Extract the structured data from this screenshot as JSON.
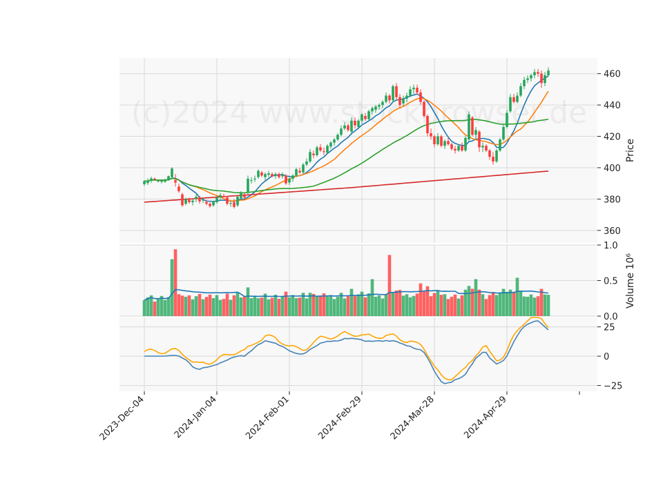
{
  "watermark": "(c)2024 www.stockbrowser.de",
  "colors": {
    "up": "#26a65b",
    "down": "#ff3b3b",
    "ma_short": "#1f77b4",
    "ma_mid": "#ff7f0e",
    "ma_long": "#2ca02c",
    "ma_200": "#d62728",
    "volume_ma": "#1f77b4",
    "osc_fast": "#4682b4",
    "osc_slow": "#ffa500",
    "panel_bg": "#f8f8f8",
    "grid": "#d9d9d9"
  },
  "chart_data": [
    {
      "type": "candlestick",
      "panel": "price",
      "ylabel": "Price",
      "ylim": [
        352,
        470
      ],
      "yticks": [
        360,
        380,
        400,
        420,
        440,
        460
      ],
      "x_tick_labels": [
        "2023-Dec-04",
        "2024-Jan-04",
        "2024-Feb-01",
        "2024-Feb-29",
        "2024-Mar-28",
        "2024-Apr-29"
      ],
      "x_tick_index": [
        0,
        21,
        42,
        63,
        84,
        105
      ],
      "grid": true,
      "candles": [
        [
          389.5,
          392.0,
          388.3,
          391.5
        ],
        [
          390.2,
          393.3,
          389.0,
          391.6
        ],
        [
          391.7,
          394.3,
          390.3,
          393.2
        ],
        [
          393.0,
          393.7,
          392.3,
          392.5
        ],
        [
          391.3,
          392.5,
          390.6,
          391.6
        ],
        [
          391.0,
          392.6,
          390.0,
          391.7
        ],
        [
          391.0,
          393.0,
          390.4,
          392.2
        ],
        [
          392.0,
          395.0,
          391.7,
          394.6
        ],
        [
          394.0,
          400.4,
          393.0,
          399.5
        ],
        [
          392.0,
          396.0,
          388.0,
          390.5
        ],
        [
          388.0,
          390.0,
          384.0,
          385.0
        ],
        [
          383.0,
          384.0,
          375.0,
          376.0
        ],
        [
          377.0,
          381.0,
          376.0,
          380.0
        ],
        [
          379.5,
          381.0,
          377.0,
          378.0
        ],
        [
          378.0,
          380.0,
          376.0,
          379.0
        ],
        [
          380.0,
          383.0,
          378.0,
          381.5
        ],
        [
          381.0,
          382.0,
          377.0,
          378.5
        ],
        [
          379.5,
          381.0,
          377.5,
          379.5
        ],
        [
          378.0,
          379.5,
          376.0,
          377.0
        ],
        [
          377.0,
          378.0,
          374.5,
          375.5
        ],
        [
          376.0,
          379.0,
          375.0,
          378.5
        ],
        [
          378.0,
          382.0,
          377.0,
          381.0
        ],
        [
          381.0,
          384.0,
          380.0,
          382.5
        ],
        [
          382.0,
          383.5,
          381.0,
          381.5
        ],
        [
          381.0,
          382.0,
          376.0,
          377.0
        ],
        [
          377.0,
          378.5,
          375.0,
          377.5
        ],
        [
          378.0,
          380.0,
          374.0,
          375.0
        ],
        [
          376.0,
          382.0,
          375.0,
          381.5
        ],
        [
          380.5,
          385.0,
          379.5,
          384.0
        ],
        [
          383.0,
          384.0,
          380.0,
          381.0
        ],
        [
          384.0,
          395.0,
          383.0,
          393.0
        ],
        [
          392.0,
          394.0,
          390.0,
          392.0
        ],
        [
          392.5,
          395.0,
          391.0,
          393.0
        ],
        [
          394.0,
          399.0,
          393.0,
          398.0
        ],
        [
          397.0,
          398.0,
          394.0,
          395.0
        ],
        [
          394.0,
          397.0,
          391.0,
          396.0
        ],
        [
          395.5,
          398.0,
          394.0,
          396.5
        ],
        [
          396.0,
          397.0,
          394.0,
          394.5
        ],
        [
          395.0,
          397.0,
          393.0,
          396.0
        ],
        [
          396.0,
          397.0,
          393.0,
          394.0
        ],
        [
          394.5,
          397.0,
          393.0,
          395.5
        ],
        [
          395.0,
          396.0,
          389.0,
          390.0
        ],
        [
          390.5,
          394.0,
          389.0,
          393.0
        ],
        [
          393.0,
          396.0,
          391.0,
          395.0
        ],
        [
          395.0,
          400.0,
          394.0,
          399.0
        ],
        [
          398.0,
          400.0,
          396.0,
          397.0
        ],
        [
          397.0,
          403.0,
          396.0,
          402.0
        ],
        [
          402.0,
          406.0,
          401.0,
          404.0
        ],
        [
          404.0,
          412.0,
          403.0,
          410.0
        ],
        [
          409.0,
          411.0,
          406.0,
          408.0
        ],
        [
          408.0,
          414.0,
          407.0,
          413.0
        ],
        [
          413.0,
          415.0,
          410.0,
          411.0
        ],
        [
          410.5,
          413.0,
          408.0,
          410.0
        ],
        [
          409.5,
          415.0,
          409.0,
          414.0
        ],
        [
          413.5,
          417.0,
          412.0,
          416.0
        ],
        [
          416.0,
          419.0,
          414.0,
          418.0
        ],
        [
          418.0,
          422.0,
          417.0,
          421.0
        ],
        [
          421.0,
          427.0,
          420.0,
          425.0
        ],
        [
          425.0,
          429.0,
          424.0,
          427.0
        ],
        [
          427.0,
          428.0,
          423.0,
          424.0
        ],
        [
          423.0,
          432.0,
          421.0,
          430.0
        ],
        [
          430.0,
          432.0,
          425.0,
          427.0
        ],
        [
          426.0,
          431.0,
          424.5,
          430.0
        ],
        [
          430.0,
          435.0,
          428.0,
          434.0
        ],
        [
          433.0,
          435.0,
          430.0,
          431.0
        ],
        [
          431.0,
          437.0,
          430.0,
          436.0
        ],
        [
          436.0,
          439.0,
          434.0,
          438.0
        ],
        [
          437.0,
          440.0,
          435.0,
          439.0
        ],
        [
          439.0,
          441.0,
          437.0,
          440.0
        ],
        [
          440.0,
          443.0,
          438.0,
          442.0
        ],
        [
          442.0,
          448.0,
          441.0,
          446.0
        ],
        [
          446.0,
          447.0,
          441.0,
          443.0
        ],
        [
          443.0,
          453.0,
          442.0,
          452.0
        ],
        [
          452.0,
          454.0,
          443.0,
          445.0
        ],
        [
          445.0,
          447.0,
          438.0,
          440.0
        ],
        [
          441.0,
          446.0,
          439.0,
          444.0
        ],
        [
          444.0,
          448.0,
          442.0,
          446.0
        ],
        [
          446.0,
          452.0,
          445.0,
          450.0
        ],
        [
          450.0,
          453.0,
          447.0,
          451.0
        ],
        [
          451.0,
          453.0,
          447.0,
          448.0
        ],
        [
          448.0,
          450.0,
          440.0,
          442.0
        ],
        [
          442.0,
          443.0,
          432.0,
          433.0
        ],
        [
          433.0,
          434.0,
          420.0,
          422.0
        ],
        [
          422.0,
          425.0,
          418.0,
          420.0
        ],
        [
          420.0,
          421.0,
          413.0,
          415.0
        ],
        [
          415.0,
          422.0,
          414.0,
          420.0
        ],
        [
          420.0,
          421.0,
          413.0,
          414.0
        ],
        [
          414.0,
          418.0,
          412.0,
          417.0
        ],
        [
          417.0,
          419.0,
          414.0,
          415.0
        ],
        [
          415.0,
          416.0,
          411.0,
          412.0
        ],
        [
          412.0,
          414.0,
          409.0,
          411.0
        ],
        [
          411.0,
          415.0,
          410.0,
          414.0
        ],
        [
          414.0,
          416.0,
          410.0,
          411.0
        ],
        [
          411.0,
          420.0,
          410.0,
          419.0
        ],
        [
          418.0,
          436.0,
          417.0,
          434.0
        ],
        [
          432.0,
          433.0,
          420.0,
          421.0
        ],
        [
          421.0,
          426.0,
          418.0,
          424.0
        ],
        [
          423.0,
          424.0,
          410.0,
          413.0
        ],
        [
          413.0,
          416.0,
          410.0,
          414.0
        ],
        [
          414.0,
          415.0,
          410.0,
          411.0
        ],
        [
          411.0,
          412.0,
          405.0,
          407.0
        ],
        [
          407.0,
          410.0,
          402.0,
          404.0
        ],
        [
          404.0,
          412.0,
          403.0,
          411.0
        ],
        [
          411.0,
          419.0,
          410.0,
          418.0
        ],
        [
          418.0,
          428.0,
          417.0,
          426.0
        ],
        [
          426.0,
          437.0,
          425.0,
          435.0
        ],
        [
          436.0,
          447.0,
          435.0,
          445.0
        ],
        [
          445.0,
          447.0,
          441.0,
          442.0
        ],
        [
          442.0,
          448.0,
          441.0,
          446.0
        ],
        [
          446.0,
          454.0,
          445.0,
          452.0
        ],
        [
          452.0,
          458.0,
          450.0,
          456.0
        ],
        [
          456.0,
          459.0,
          454.0,
          457.0
        ],
        [
          457.0,
          460.0,
          455.0,
          459.0
        ],
        [
          459.0,
          463.0,
          457.0,
          461.0
        ],
        [
          461.0,
          463.0,
          458.0,
          460.0
        ],
        [
          460.0,
          462.0,
          451.0,
          454.0
        ],
        [
          454.0,
          461.0,
          452.0,
          459.0
        ],
        [
          459.0,
          464.0,
          458.0,
          462.0
        ]
      ]
    },
    {
      "type": "bar",
      "panel": "volume",
      "ylabel": "Volume  10^6",
      "ylim": [
        0,
        1.0
      ],
      "yticks": [
        0.0,
        0.5,
        1.0
      ],
      "ytick_labels": [
        "0.0",
        "0.5",
        "1.0"
      ]
    },
    {
      "type": "line",
      "panel": "oscillator",
      "ylim": [
        -30,
        33
      ],
      "yticks": [
        -25,
        0,
        25
      ],
      "ytick_labels": [
        "−25",
        "0",
        "25"
      ]
    }
  ]
}
